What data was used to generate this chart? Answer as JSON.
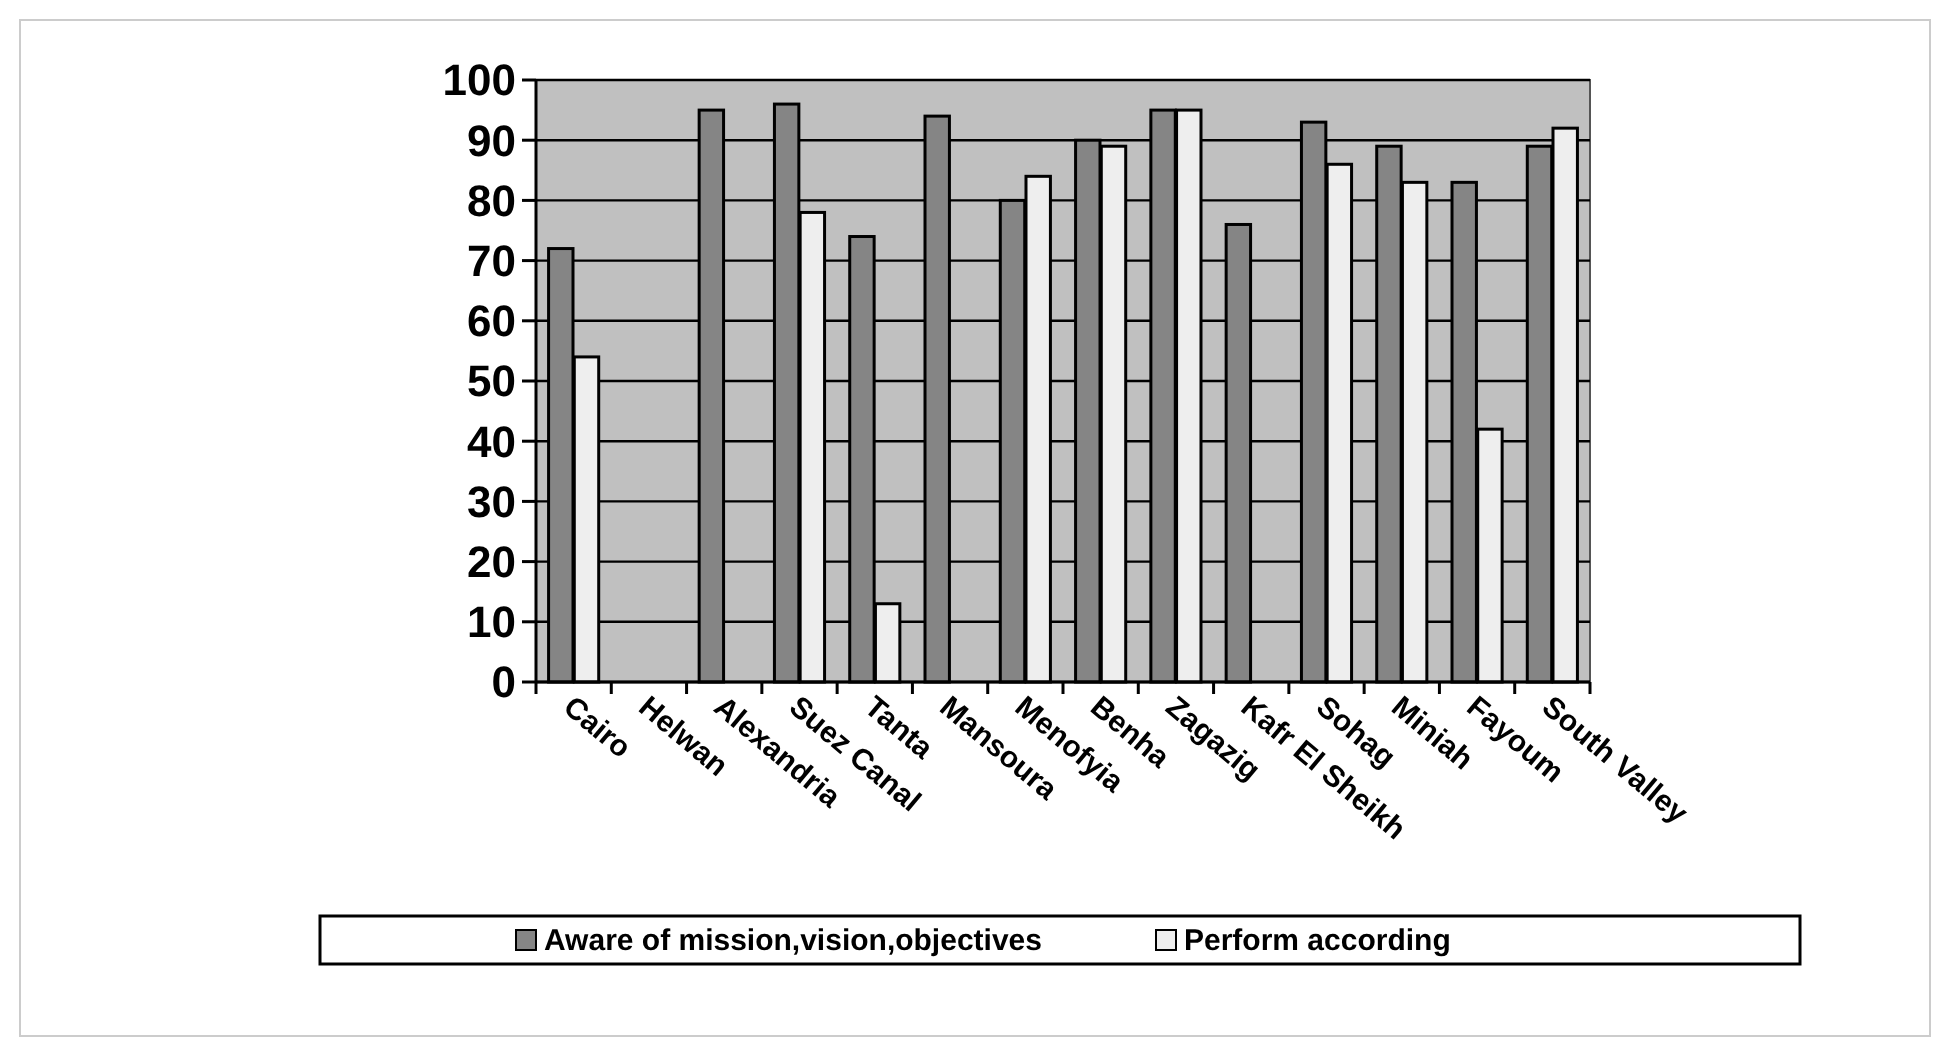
{
  "chart_data": {
    "type": "bar",
    "categories": [
      "Cairo",
      "Helwan",
      "Alexandria",
      "Suez Canal",
      "Tanta",
      "Mansoura",
      "Menofyia",
      "Benha",
      "Zagazig",
      "Kafr El Sheikh",
      "Sohag",
      "Miniah",
      "Fayoum",
      "South Valley"
    ],
    "series": [
      {
        "name": "Aware of mission,vision,objectives",
        "color": "#858585",
        "values": [
          72,
          null,
          95,
          96,
          74,
          94,
          80,
          90,
          95,
          76,
          93,
          89,
          83,
          89
        ]
      },
      {
        "name": "Perform according",
        "color": "#eeeeee",
        "values": [
          54,
          null,
          null,
          78,
          13,
          null,
          84,
          89,
          95,
          null,
          86,
          83,
          42,
          92
        ]
      }
    ],
    "ylim": [
      0,
      100
    ],
    "yticks": [
      0,
      10,
      20,
      30,
      40,
      50,
      60,
      70,
      80,
      90,
      100
    ],
    "grid": "y",
    "legend": "bottom"
  }
}
